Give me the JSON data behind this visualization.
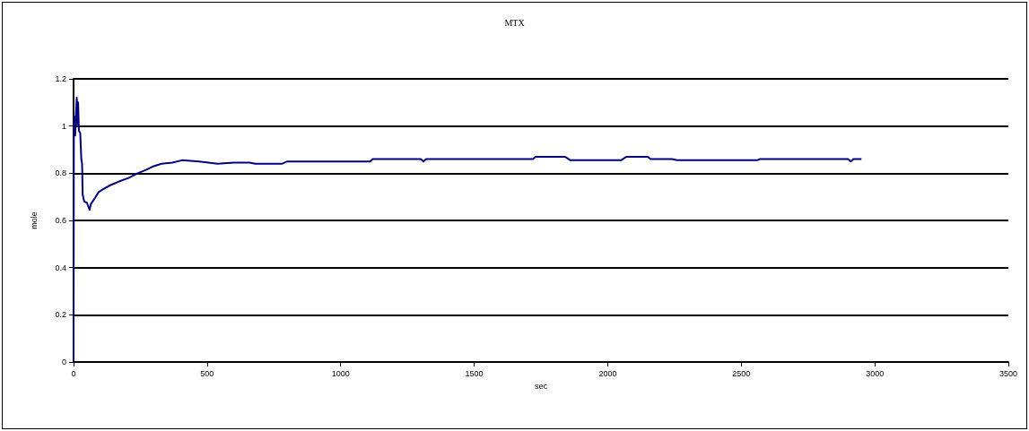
{
  "chart_data": {
    "type": "line",
    "title": "MTX",
    "xlabel": "sec",
    "ylabel": "mole",
    "xlim": [
      0,
      3500
    ],
    "xticks": [
      0,
      500,
      1000,
      1500,
      2000,
      2500,
      3000,
      3500
    ],
    "ylim": [
      0,
      1.2
    ],
    "yticks": [
      0,
      0.2,
      0.4,
      0.6,
      0.8,
      1,
      1.2
    ],
    "grid": "y",
    "marker": "none",
    "line_style": "solid",
    "series": [
      {
        "color": "#000080",
        "x": [
          0,
          1,
          4,
          6,
          9,
          12,
          15,
          17,
          20,
          25,
          29,
          32,
          34,
          40,
          50,
          60,
          65,
          80,
          94,
          115,
          139,
          170,
          206,
          240,
          273,
          300,
          329,
          370,
          406,
          470,
          540,
          600,
          660,
          680,
          780,
          800,
          1110,
          1120,
          1300,
          1310,
          1320,
          1720,
          1730,
          1840,
          1860,
          2050,
          2070,
          2150,
          2160,
          2240,
          2260,
          2560,
          2570,
          2900,
          2910,
          2920,
          2950
        ],
        "values": [
          0,
          0.97,
          1.04,
          0.96,
          1.05,
          1.12,
          1.0,
          1.1,
          0.98,
          0.97,
          0.86,
          0.84,
          0.71,
          0.68,
          0.675,
          0.645,
          0.67,
          0.695,
          0.72,
          0.735,
          0.75,
          0.765,
          0.78,
          0.8,
          0.815,
          0.83,
          0.84,
          0.845,
          0.855,
          0.85,
          0.84,
          0.845,
          0.845,
          0.84,
          0.84,
          0.85,
          0.85,
          0.86,
          0.86,
          0.85,
          0.86,
          0.86,
          0.87,
          0.87,
          0.855,
          0.855,
          0.87,
          0.87,
          0.86,
          0.86,
          0.855,
          0.855,
          0.86,
          0.86,
          0.85,
          0.86,
          0.86
        ]
      }
    ]
  }
}
